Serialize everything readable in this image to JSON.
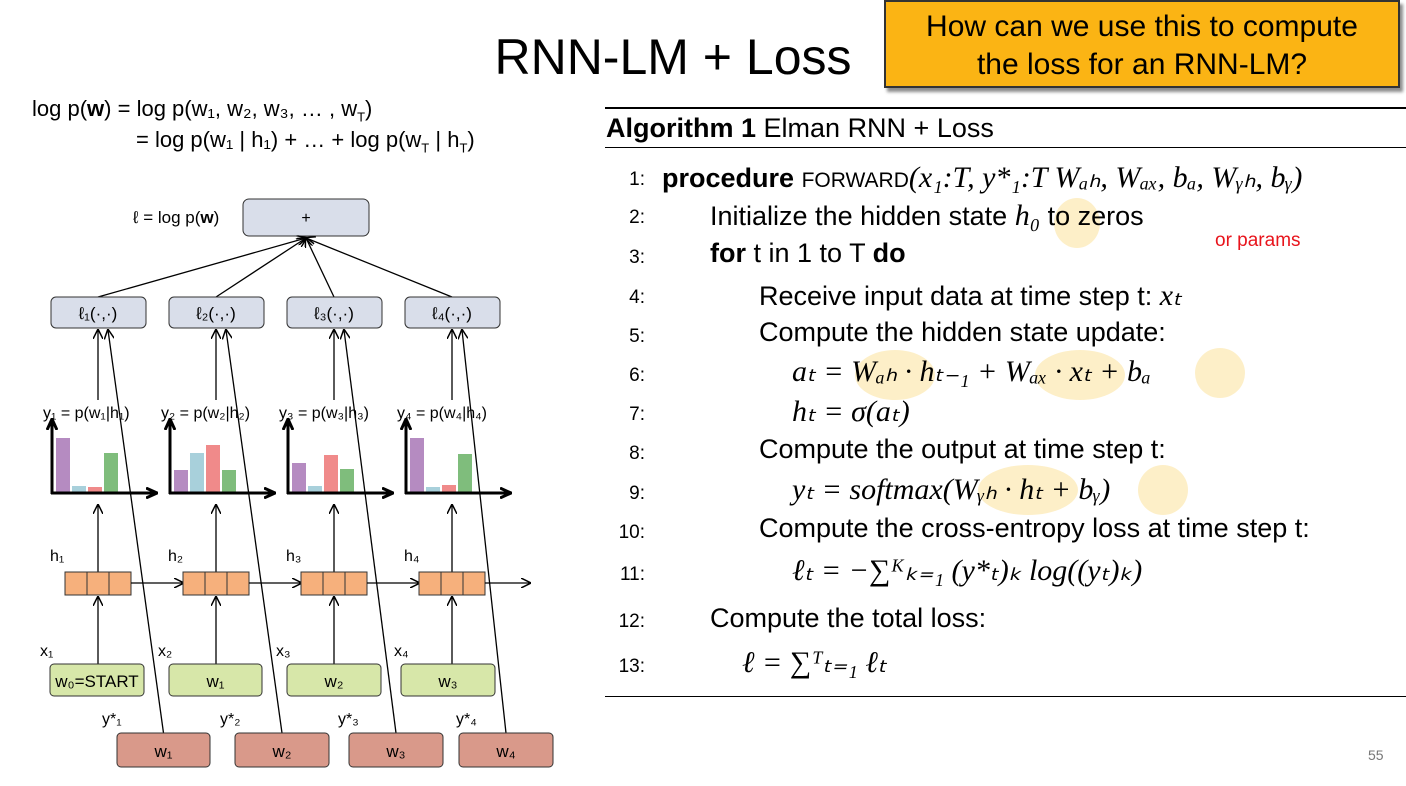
{
  "title": "RNN-LM + Loss",
  "callout": [
    "How can we use this to compute",
    "the loss for an RNN-LM?"
  ],
  "equation": {
    "line1": [
      "log p(",
      "w",
      ") = log p(w₁, w₂, w₃, … , w",
      "T",
      ")"
    ],
    "line2": [
      "= log p(w₁ | h₁) + … + log p(w",
      "T",
      " | h",
      "T",
      ")"
    ]
  },
  "diagram": {
    "total_label": [
      "ℓ = log p(",
      "w",
      ")"
    ],
    "sum_node": "+",
    "loss_nodes": [
      "ℓ₁(·,·)",
      "ℓ₂(·,·)",
      "ℓ₃(·,·)",
      "ℓ₄(·,·)"
    ],
    "output_labels": [
      "y₁ = p(w₁|h₁)",
      "y₂ = p(w₂|h₂)",
      "y₃ = p(w₃|h₃)",
      "y₄ = p(w₄|h₄)"
    ],
    "hidden_labels": [
      "h₁",
      "h₂",
      "h₃",
      "h₄"
    ],
    "input_labels": [
      "x₁",
      "x₂",
      "x₃",
      "x₄"
    ],
    "input_nodes": [
      "w₀=START",
      "w₁",
      "w₂",
      "w₃"
    ],
    "target_labels": [
      "y*₁",
      "y*₂",
      "y*₃",
      "y*₄"
    ],
    "target_nodes": [
      "w₁",
      "w₂",
      "w₃",
      "w₄"
    ]
  },
  "algorithm": {
    "label": "Algorithm 1",
    "name": "Elman RNN + Loss",
    "lines": [
      {
        "num": "1:",
        "segments": [
          "procedure",
          "FORWARD",
          "(x₁:T, y*₁:T Wₐₕ, Wₐₓ, bₐ, Wᵧₕ, bᵧ)"
        ]
      },
      {
        "num": "2:",
        "segments": [
          "Initialize the hidden state ",
          "h₀",
          " to zeros"
        ]
      },
      {
        "num": "3:",
        "segments": [
          "for",
          " t in 1 to T ",
          "do"
        ]
      },
      {
        "num": "4:",
        "segments": [
          "Receive input data at time step t: ",
          "xₜ"
        ]
      },
      {
        "num": "5:",
        "segments": [
          "Compute the hidden state update:"
        ]
      },
      {
        "num": "6:",
        "segments": [
          "aₜ = Wₐₕ · hₜ₋₁ + Wₐₓ · xₜ + bₐ"
        ]
      },
      {
        "num": "7:",
        "segments": [
          "hₜ = σ(aₜ)"
        ]
      },
      {
        "num": "8:",
        "segments": [
          "Compute the output at time step t:"
        ]
      },
      {
        "num": "9:",
        "segments": [
          "yₜ = softmax(Wᵧₕ · hₜ + bᵧ)"
        ]
      },
      {
        "num": "10:",
        "segments": [
          "Compute the cross-entropy loss at time step t:"
        ]
      },
      {
        "num": "11:",
        "segments": [
          "ℓₜ = −∑ᴷₖ₌₁ (y*ₜ)ₖ log((yₜ)ₖ)"
        ]
      },
      {
        "num": "12:",
        "segments": [
          "Compute the total loss:"
        ]
      },
      {
        "num": "13:",
        "segments": [
          "ℓ = ∑ᵀₜ₌₁ ℓₜ"
        ]
      }
    ]
  },
  "annotation": "or params",
  "page_number": "55"
}
